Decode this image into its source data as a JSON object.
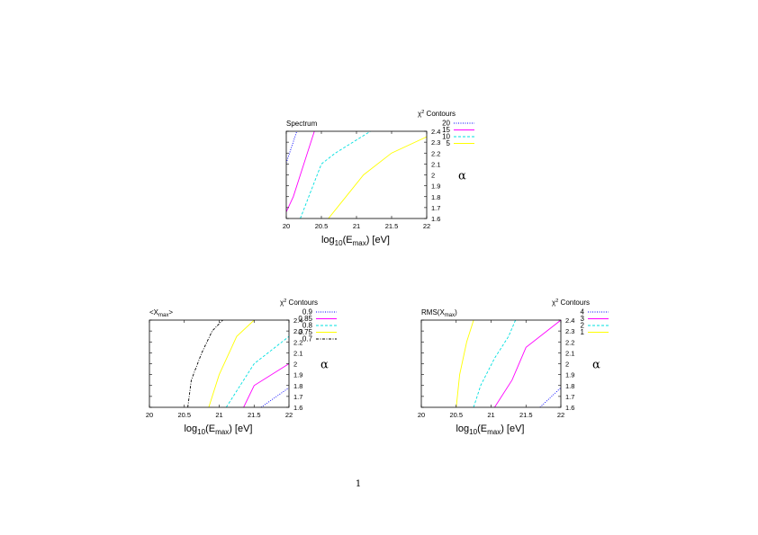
{
  "chart_data": [
    {
      "type": "line",
      "title": "Spectrum",
      "xlabel": "log10(E_max) [eV]",
      "xlabel_parts": {
        "pre": "log",
        "sub1": "10",
        "mid": "(E",
        "sub2": "max",
        "post": ") [eV]"
      },
      "ylabel": "α",
      "xlim": [
        20,
        22
      ],
      "ylim": [
        1.6,
        2.4
      ],
      "xticks": [
        "20",
        "20.5",
        "21",
        "21.5",
        "22"
      ],
      "yticks": [
        "1.6",
        "1.7",
        "1.8",
        "1.9",
        "2",
        "2.1",
        "2.2",
        "2.3",
        "2.4"
      ],
      "legend_title": "χ2 Contours",
      "legend_placement": "top-right",
      "series": [
        {
          "name": "20",
          "color": "#0000ff",
          "dash": "dotted",
          "points": [
            [
              20,
              2.11
            ],
            [
              20.15,
              2.4
            ]
          ]
        },
        {
          "name": "15",
          "color": "#ff00ff",
          "dash": "solid",
          "points": [
            [
              20,
              1.66
            ],
            [
              20.1,
              1.8
            ],
            [
              20.25,
              2.1
            ],
            [
              20.4,
              2.4
            ]
          ]
        },
        {
          "name": "10",
          "color": "#00e0e0",
          "dash": "dashed",
          "points": [
            [
              20.2,
              1.6
            ],
            [
              20.5,
              2.1
            ],
            [
              20.7,
              2.2
            ],
            [
              21.2,
              2.4
            ]
          ]
        },
        {
          "name": "5",
          "color": "#ffff00",
          "dash": "solid",
          "points": [
            [
              20.6,
              1.6
            ],
            [
              21.1,
              2.0
            ],
            [
              21.5,
              2.2
            ],
            [
              22,
              2.35
            ]
          ]
        }
      ]
    },
    {
      "type": "line",
      "title": "<X_max>",
      "title_parts": {
        "pre": "<X",
        "sub": "max",
        "post": ">"
      },
      "xlabel": "log10(E_max) [eV]",
      "xlabel_parts": {
        "pre": "log",
        "sub1": "10",
        "mid": "(E",
        "sub2": "max",
        "post": ") [eV]"
      },
      "ylabel": "α",
      "xlim": [
        20,
        22
      ],
      "ylim": [
        1.6,
        2.4
      ],
      "xticks": [
        "20",
        "20.5",
        "21",
        "21.5",
        "22"
      ],
      "yticks": [
        "1.6",
        "1.7",
        "1.8",
        "1.9",
        "2",
        "2.1",
        "2.2",
        "2.3",
        "2.4"
      ],
      "legend_title": "χ2 Contours",
      "legend_placement": "top-right",
      "series": [
        {
          "name": "0.9",
          "color": "#0000ff",
          "dash": "dotted",
          "points": [
            [
              21.6,
              1.6
            ],
            [
              22,
              1.78
            ]
          ]
        },
        {
          "name": "0.85",
          "color": "#ff00ff",
          "dash": "solid",
          "points": [
            [
              21.35,
              1.6
            ],
            [
              21.5,
              1.8
            ],
            [
              22,
              2.0
            ]
          ]
        },
        {
          "name": "0.8",
          "color": "#00e0e0",
          "dash": "dashed",
          "points": [
            [
              21.1,
              1.6
            ],
            [
              21.5,
              2.0
            ],
            [
              22,
              2.25
            ]
          ]
        },
        {
          "name": "0.75",
          "color": "#ffff00",
          "dash": "solid",
          "points": [
            [
              20.85,
              1.6
            ],
            [
              21.0,
              1.9
            ],
            [
              21.25,
              2.25
            ],
            [
              21.5,
              2.4
            ]
          ]
        },
        {
          "name": "0.7",
          "color": "#000000",
          "dash": "dashdot",
          "points": [
            [
              20.55,
              1.6
            ],
            [
              20.6,
              1.85
            ],
            [
              20.75,
              2.1
            ],
            [
              20.9,
              2.3
            ],
            [
              21.05,
              2.4
            ]
          ]
        }
      ]
    },
    {
      "type": "line",
      "title": "RMS(X_max)",
      "title_parts": {
        "pre": "RMS(X",
        "sub": "max",
        "post": ")"
      },
      "xlabel": "log10(E_max) [eV]",
      "xlabel_parts": {
        "pre": "log",
        "sub1": "10",
        "mid": "(E",
        "sub2": "max",
        "post": ") [eV]"
      },
      "ylabel": "α",
      "xlim": [
        20,
        22
      ],
      "ylim": [
        1.6,
        2.4
      ],
      "xticks": [
        "20",
        "20.5",
        "21",
        "21.5",
        "22"
      ],
      "yticks": [
        "1.6",
        "1.7",
        "1.8",
        "1.9",
        "2",
        "2.1",
        "2.2",
        "2.3",
        "2.4"
      ],
      "legend_title": "χ2 Contours",
      "legend_placement": "top-right",
      "series": [
        {
          "name": "4",
          "color": "#0000ff",
          "dash": "dotted",
          "points": [
            [
              21.7,
              1.6
            ],
            [
              22,
              1.78
            ]
          ]
        },
        {
          "name": "3",
          "color": "#ff00ff",
          "dash": "solid",
          "points": [
            [
              21.05,
              1.6
            ],
            [
              21.3,
              1.85
            ],
            [
              21.5,
              2.15
            ],
            [
              22,
              2.4
            ]
          ]
        },
        {
          "name": "2",
          "color": "#00e0e0",
          "dash": "dashed",
          "points": [
            [
              20.75,
              1.6
            ],
            [
              20.85,
              1.8
            ],
            [
              21.05,
              2.05
            ],
            [
              21.25,
              2.25
            ],
            [
              21.35,
              2.4
            ]
          ]
        },
        {
          "name": "1",
          "color": "#ffff00",
          "dash": "solid",
          "points": [
            [
              20.5,
              1.6
            ],
            [
              20.55,
              1.9
            ],
            [
              20.65,
              2.2
            ],
            [
              20.75,
              2.4
            ]
          ]
        }
      ]
    }
  ],
  "page_number": "1"
}
